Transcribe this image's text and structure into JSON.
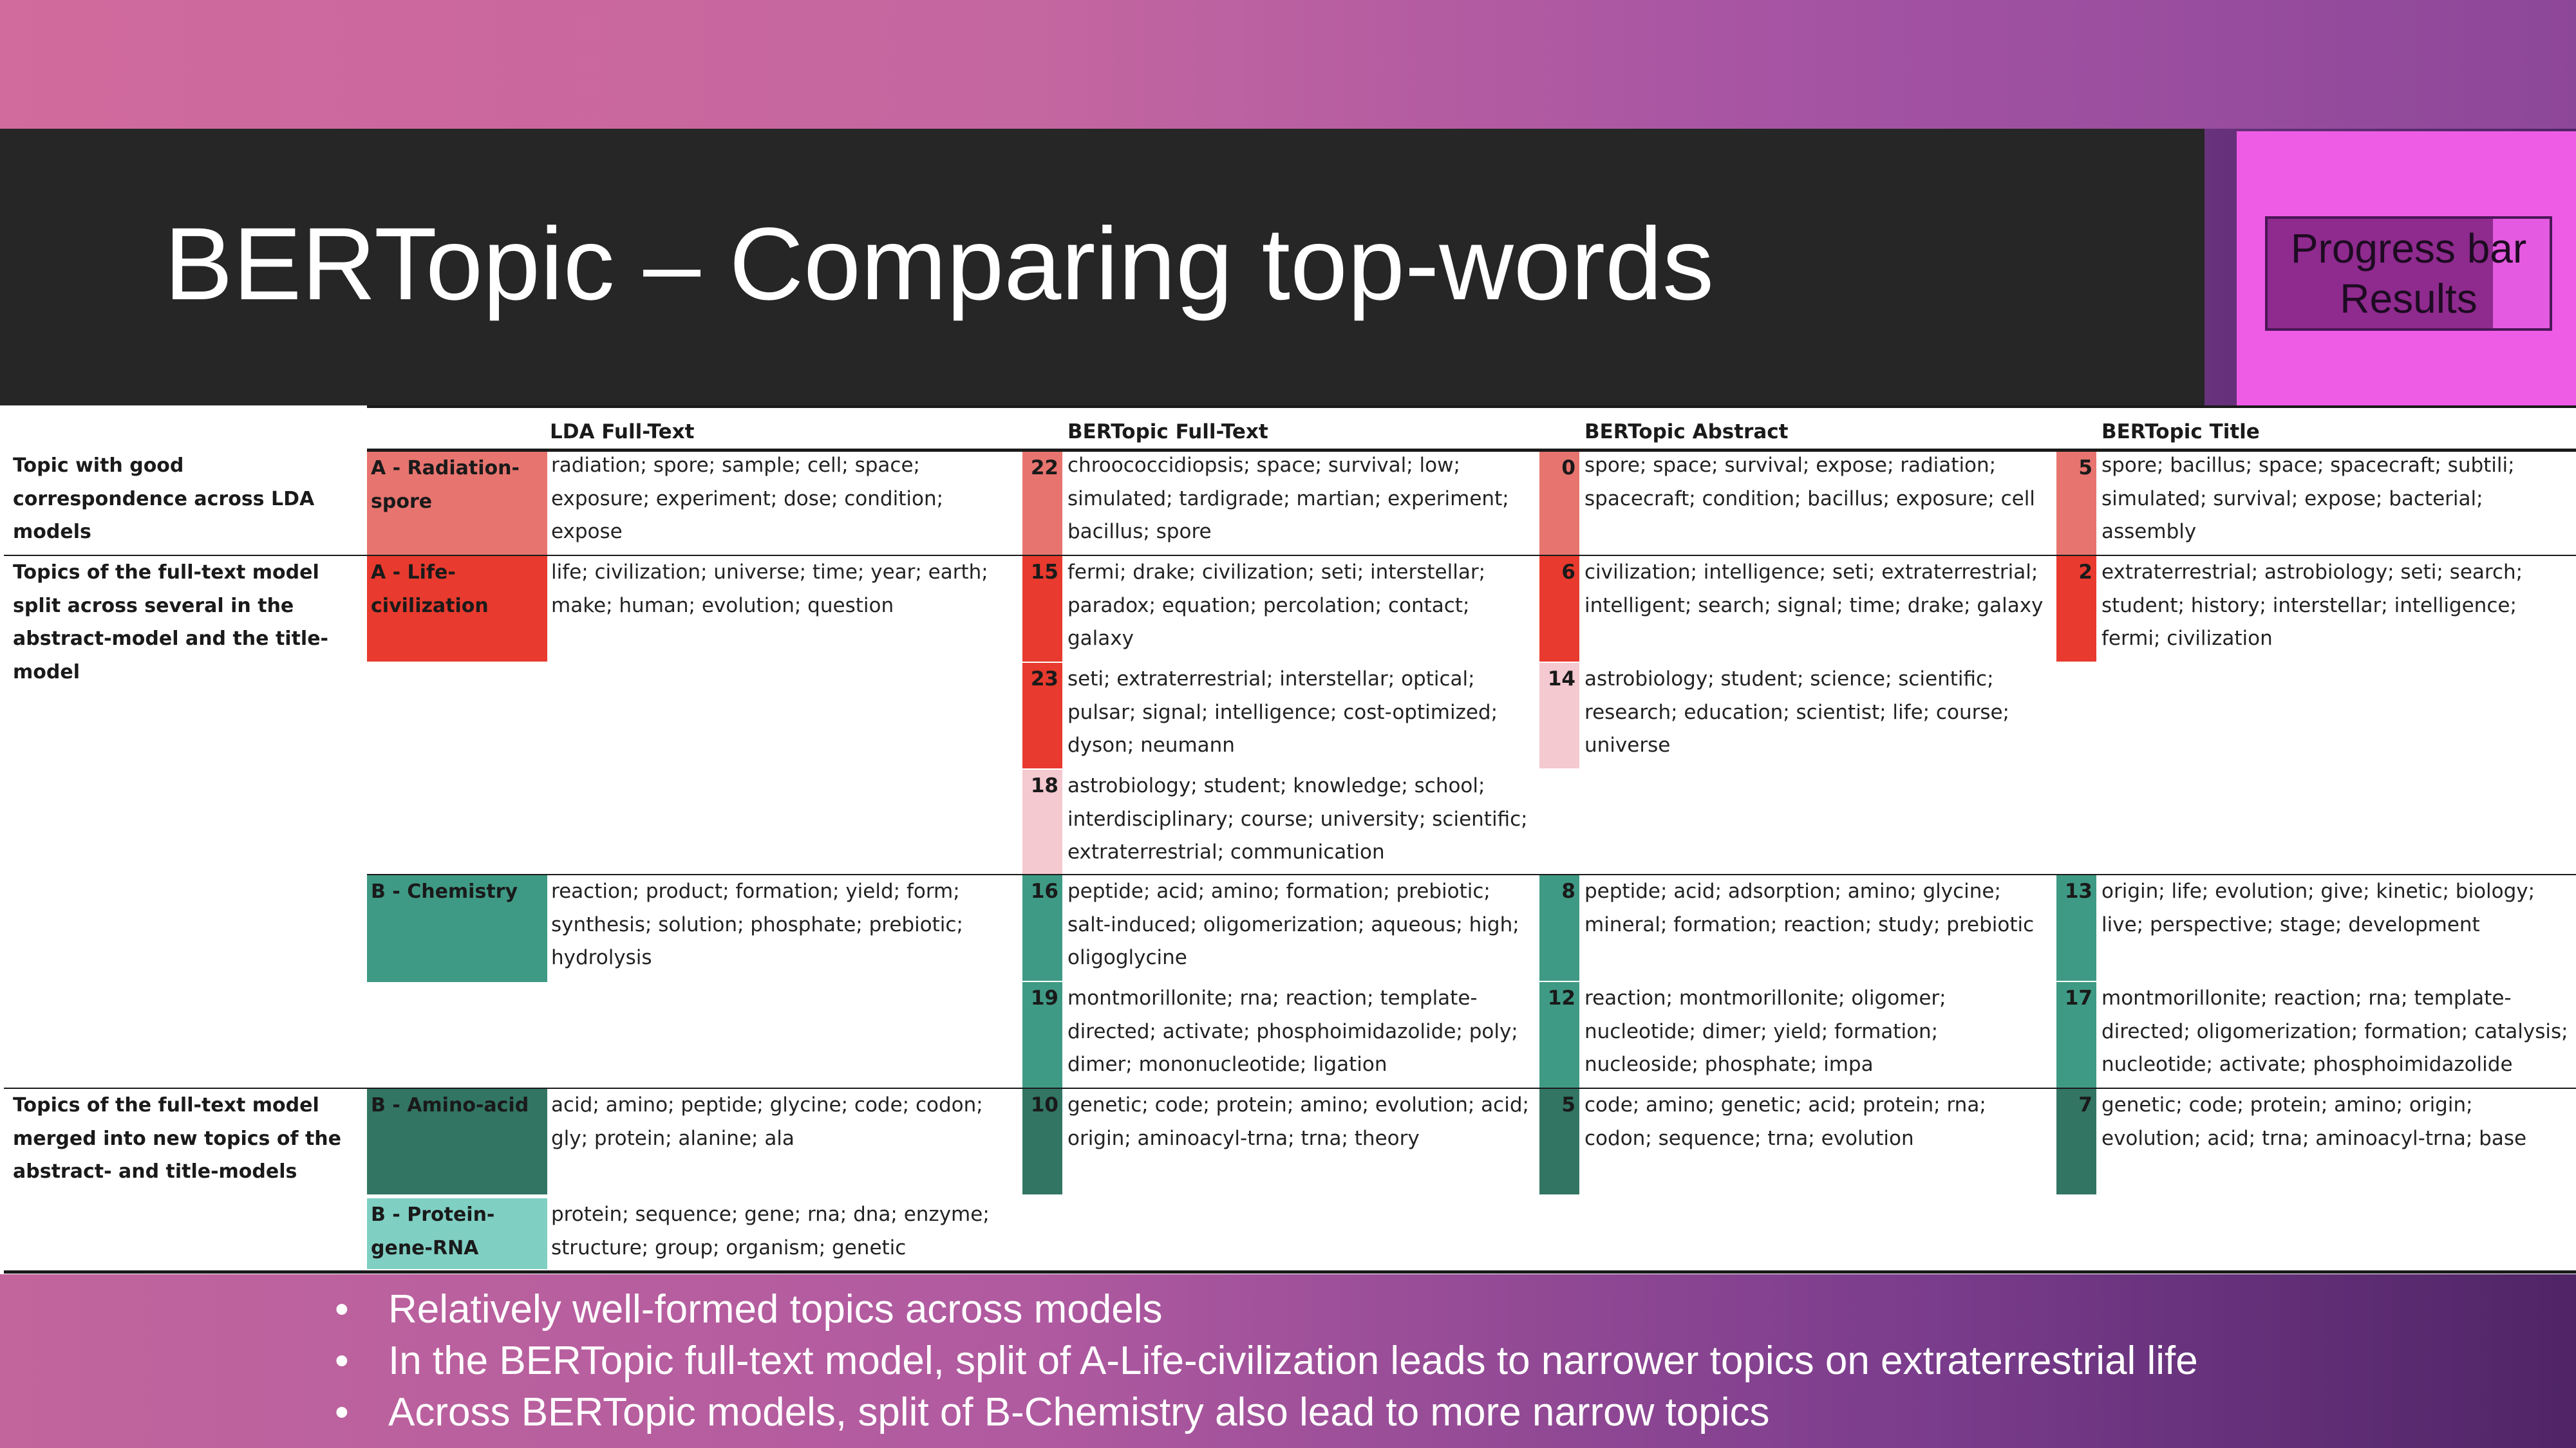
{
  "slide": {
    "title": "BERTopic – Comparing top-words",
    "progress": {
      "line1": "Progress bar",
      "line2": "Results",
      "fraction": 0.8
    }
  },
  "table": {
    "headers": [
      "LDA Full-Text",
      "BERTopic Full-Text",
      "BERTopic Abstract",
      "BERTopic Title"
    ],
    "row_labels": {
      "good": "Topic with good correspondence across LDA models",
      "split": "Topics of the full-text model split across several in the abstract-model and the title-model",
      "merged": "Topics of the full-text model merged into new topics of the abstract- and title-models"
    },
    "lda": {
      "radiation": {
        "label": "A - Radiation-spore",
        "words": "radiation; spore; sample; cell; space; exposure; experiment; dose; condition; expose"
      },
      "life": {
        "label": "A - Life-civilization",
        "words": "life; civilization; universe; time; year; earth; make; human; evolution; question"
      },
      "chemistry": {
        "label": "B - Chemistry",
        "words": "reaction; product; formation; yield; form; synthesis; solution; phosphate; prebiotic; hydrolysis"
      },
      "amino": {
        "label": "B - Amino-acid",
        "words": "acid; amino; peptide; glycine; code; codon; gly; protein; alanine; ala"
      },
      "protein": {
        "label": "B - Protein-gene-RNA",
        "words": "protein; sequence; gene; rna; dna; enzyme; structure; group; organism; genetic"
      }
    },
    "bft": {
      "t22": {
        "num": "22",
        "words": "chroococcidiopsis; space; survival; low; simulated; tardigrade; martian; experiment; bacillus; spore"
      },
      "t15": {
        "num": "15",
        "words": "fermi; drake; civilization; seti; interstellar; paradox; equation; percolation; contact; galaxy"
      },
      "t23": {
        "num": "23",
        "words": "seti; extraterrestrial; interstellar; optical; pulsar; signal; intelligence; cost-optimized; dyson; neumann"
      },
      "t18": {
        "num": "18",
        "words": "astrobiology; student; knowledge; school; interdisciplinary; course; university; scientific; extraterrestrial; communication"
      },
      "t16": {
        "num": "16",
        "words": "peptide; acid; amino; formation; prebiotic; salt-induced; oligomerization; aqueous; high; oligoglycine"
      },
      "t19": {
        "num": "19",
        "words": "montmorillonite; rna; reaction; template-directed; activate; phosphoimidazolide; poly; dimer; mononucleotide; ligation"
      },
      "t10": {
        "num": "10",
        "words": "genetic; code; protein; amino; evolution; acid; origin; aminoacyl-trna; trna; theory"
      }
    },
    "babs": {
      "t0": {
        "num": "0",
        "words": "spore; space; survival; expose; radiation; spacecraft; condition; bacillus; exposure; cell"
      },
      "t6": {
        "num": "6",
        "words": "civilization; intelligence; seti; extraterrestrial; intelligent; search; signal; time; drake; galaxy"
      },
      "t14": {
        "num": "14",
        "words": "astrobiology; student; science; scientific; research; education; scientist; life; course; universe"
      },
      "t8": {
        "num": "8",
        "words": "peptide; acid; adsorption; amino; glycine; mineral; formation; reaction; study; prebiotic"
      },
      "t12": {
        "num": "12",
        "words": "reaction; montmorillonite; oligomer; nucleotide; dimer; yield; formation; nucleoside; phosphate; impa"
      },
      "t5": {
        "num": "5",
        "words": "code; amino; genetic; acid; protein; rna; codon; sequence; trna; evolution"
      }
    },
    "btitle": {
      "t5": {
        "num": "5",
        "words": "spore; bacillus; space; spacecraft; subtili; simulated; survival; expose; bacterial; assembly"
      },
      "t2": {
        "num": "2",
        "words": "extraterrestrial; astrobiology; seti; search; student; history; interstellar; intelligence; fermi; civilization"
      },
      "t13": {
        "num": "13",
        "words": "origin; life; evolution; give; kinetic; biology; live; perspective; stage; development"
      },
      "t17": {
        "num": "17",
        "words": "montmorillonite; reaction; rna; template-directed; oligomerization; formation; catalysis; nucleotide; activate; phosphoimidazolide"
      },
      "t7": {
        "num": "7",
        "words": "genetic; code; protein; amino; origin; evolution; acid; trna; aminoacyl-trna; base"
      }
    },
    "colors": {
      "radiation": "#e8746f",
      "life": "#e83a2e",
      "pink": "#f4c9cf",
      "teal": "#3f9a85",
      "teal_dark": "#327563",
      "teal_light": "#7fcfc3"
    }
  },
  "bullets": [
    "Relatively well-formed topics across models",
    "In the BERTopic full-text model, split of A-Life-civilization leads to narrower topics on extraterrestrial life",
    "Across BERTopic models, split of B-Chemistry also lead to more narrow topics"
  ]
}
